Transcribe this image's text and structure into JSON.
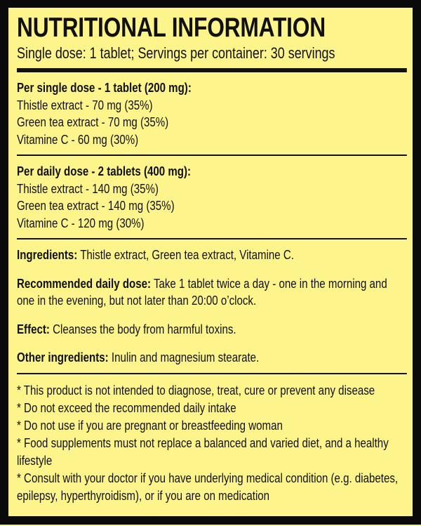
{
  "title": "NUTRITIONAL INFORMATION",
  "subtitle": "Single dose: 1 tablet; Servings per container: 30 servings",
  "single_dose": {
    "heading": "Per single dose - 1 tablet (200 mg):",
    "items": [
      "Thistle extract - 70 mg (35%)",
      "Green tea extract - 70 mg (35%)",
      "Vitamine C - 60 mg (30%)"
    ]
  },
  "daily_dose": {
    "heading": "Per daily dose - 2 tablets (400 mg):",
    "items": [
      "Thistle extract - 140 mg (35%)",
      "Green tea extract - 140 mg (35%)",
      "Vitamine C - 120 mg (30%)"
    ]
  },
  "info": [
    {
      "label": "Ingredients:",
      "text": " Thistle extract, Green tea extract, Vitamine C."
    },
    {
      "label": "Recommended daily dose:",
      "text": " Take 1 tablet twice a day - one in the morning and one in the evening, but not later than 20:00 o’clock."
    },
    {
      "label": "Effect:",
      "text": " Cleanses the body from harmful toxins."
    },
    {
      "label": "Other ingredients:",
      "text": " Inulin and magnesium stearate."
    }
  ],
  "disclaimers": [
    "* This product is not intended to diagnose, treat, cure or prevent any disease",
    "* Do not exceed the recommended daily intake",
    "* Do not use if you are pregnant or breastfeeding woman",
    "* Food supplements must not replace a balanced and varied diet, and a healthy lifestyle",
    "* Consult with your doctor if you have underlying medical condition (e.g. diabetes, epilepsy, hyperthyroidism), or if you are on medication"
  ],
  "colors": {
    "background": "#fdf48b",
    "border": "#0a0a0a",
    "text": "#111111"
  }
}
